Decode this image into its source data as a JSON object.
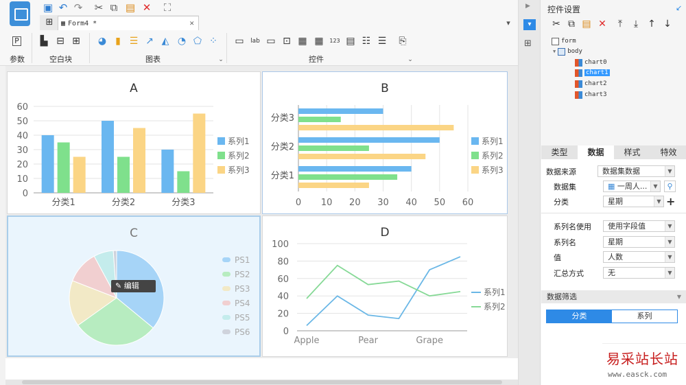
{
  "toolbar": {
    "doc_tab": "Form4 *",
    "groups": {
      "param": "参数",
      "blank": "空白块",
      "charts": "图表",
      "widgets": "控件"
    }
  },
  "charts": {
    "A": {
      "title": "A",
      "categories": [
        "分类1",
        "分类2",
        "分类3"
      ],
      "series": [
        {
          "name": "系列1",
          "values": [
            40,
            50,
            30
          ],
          "color": "#6ab7f0"
        },
        {
          "name": "系列2",
          "values": [
            35,
            25,
            15
          ],
          "color": "#7fe08c"
        },
        {
          "name": "系列3",
          "values": [
            25,
            45,
            55
          ],
          "color": "#fbd585"
        }
      ],
      "y_ticks": [
        "0",
        "10",
        "20",
        "30",
        "40",
        "50",
        "60"
      ]
    },
    "B": {
      "title": "B",
      "categories": [
        "分类1",
        "分类2",
        "分类3"
      ],
      "series": [
        {
          "name": "系列1",
          "values": [
            40,
            50,
            30
          ],
          "color": "#6ab7f0"
        },
        {
          "name": "系列2",
          "values": [
            35,
            25,
            15
          ],
          "color": "#7fe08c"
        },
        {
          "name": "系列3",
          "values": [
            25,
            45,
            55
          ],
          "color": "#fbd585"
        }
      ],
      "x_ticks": [
        "0",
        "10",
        "20",
        "30",
        "40",
        "50",
        "60"
      ]
    },
    "C": {
      "title": "C",
      "edit_label": "编辑",
      "slices": [
        {
          "name": "PS1",
          "value": 32,
          "color": "#a6d4f7"
        },
        {
          "name": "PS2",
          "value": 26,
          "color": "#b7ecc0"
        },
        {
          "name": "PS3",
          "value": 14,
          "color": "#f2e9c6"
        },
        {
          "name": "PS4",
          "value": 10,
          "color": "#f1cfd0"
        },
        {
          "name": "PS5",
          "value": 6,
          "color": "#c4ecec"
        },
        {
          "name": "PS6",
          "value": 1,
          "color": "#cfd3dc"
        }
      ]
    },
    "D": {
      "title": "D",
      "x_labels": [
        "Apple",
        "Pear",
        "Grape"
      ],
      "y_ticks": [
        "0",
        "20",
        "40",
        "60",
        "80",
        "100"
      ],
      "series": [
        {
          "name": "系列1",
          "values": [
            6,
            40,
            18,
            14,
            70,
            85
          ],
          "color": "#6ab7e6"
        },
        {
          "name": "系列2",
          "values": [
            37,
            75,
            53,
            57,
            40,
            45
          ],
          "color": "#86d996"
        }
      ]
    }
  },
  "chart_data": [
    {
      "type": "bar",
      "title": "A",
      "categories": [
        "分类1",
        "分类2",
        "分类3"
      ],
      "series": [
        {
          "name": "系列1",
          "values": [
            40,
            50,
            30
          ]
        },
        {
          "name": "系列2",
          "values": [
            35,
            25,
            15
          ]
        },
        {
          "name": "系列3",
          "values": [
            25,
            45,
            55
          ]
        }
      ],
      "ylim": [
        0,
        60
      ]
    },
    {
      "type": "bar",
      "title": "B",
      "categories": [
        "分类1",
        "分类2",
        "分类3"
      ],
      "series": [
        {
          "name": "系列1",
          "values": [
            40,
            50,
            30
          ]
        },
        {
          "name": "系列2",
          "values": [
            35,
            25,
            15
          ]
        },
        {
          "name": "系列3",
          "values": [
            25,
            45,
            55
          ]
        }
      ],
      "xlim": [
        0,
        60
      ]
    },
    {
      "type": "pie",
      "title": "C",
      "categories": [
        "PS1",
        "PS2",
        "PS3",
        "PS4",
        "PS5",
        "PS6"
      ],
      "values": [
        32,
        26,
        14,
        10,
        6,
        1
      ]
    },
    {
      "type": "line",
      "title": "D",
      "x": [
        "Apple",
        "",
        "Pear",
        "",
        "Grape",
        ""
      ],
      "series": [
        {
          "name": "系列1",
          "values": [
            6,
            40,
            18,
            14,
            70,
            85
          ]
        },
        {
          "name": "系列2",
          "values": [
            37,
            75,
            53,
            57,
            40,
            45
          ]
        }
      ],
      "ylim": [
        0,
        100
      ]
    }
  ],
  "panel": {
    "title": "控件设置",
    "tree": {
      "form": "form",
      "body": "body",
      "items": [
        "chart0",
        "chart1",
        "chart2",
        "chart3"
      ]
    },
    "tabs": [
      "类型",
      "数据",
      "样式",
      "特效"
    ],
    "rows": {
      "source_label": "数据来源",
      "source_value": "数据集数据",
      "dataset_label": "数据集",
      "dataset_value": "一周人...",
      "category_label": "分类",
      "category_value": "星期",
      "series_name_use_label": "系列名使用",
      "series_name_use_value": "使用字段值",
      "series_name_label": "系列名",
      "series_name_value": "星期",
      "value_label": "值",
      "value_value": "人数",
      "agg_label": "汇总方式",
      "agg_value": "无"
    },
    "filter_title": "数据筛选",
    "toggle": [
      "分类",
      "系列"
    ]
  },
  "watermark": {
    "line1": "易采站长站",
    "line2": "www.easck.com"
  }
}
